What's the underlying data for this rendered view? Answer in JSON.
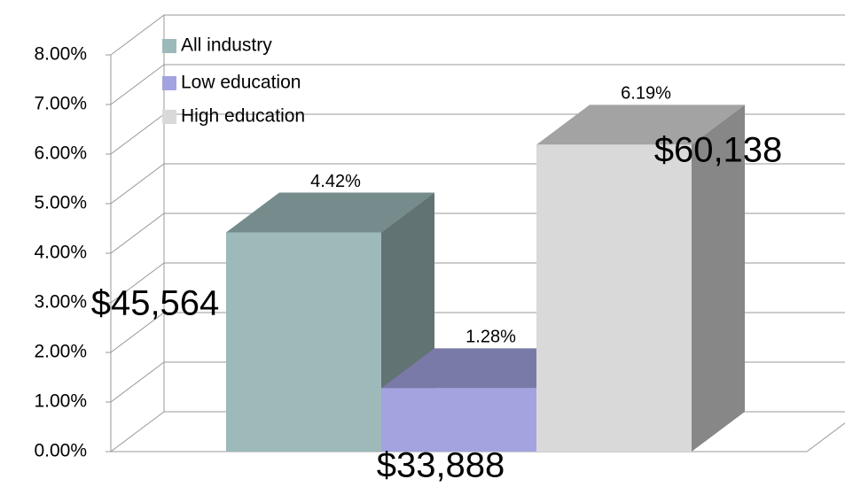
{
  "chart_data": {
    "type": "bar3d",
    "series": [
      {
        "name": "All industry",
        "color": "#9db9ba",
        "values": [
          4.42
        ],
        "value_labels": [
          "4.42%"
        ]
      },
      {
        "name": "Low education",
        "color": "#a3a3e0",
        "values": [
          1.28
        ],
        "value_labels": [
          "1.28%"
        ]
      },
      {
        "name": "High education",
        "color": "#d9d9d9",
        "values": [
          6.19
        ],
        "value_labels": [
          "6.19%"
        ]
      }
    ],
    "annotations": [
      "$45,564",
      "$33,888",
      "$60,138"
    ],
    "ylim": [
      0,
      8
    ],
    "yticks": [
      {
        "value": 0,
        "label": "0.00%"
      },
      {
        "value": 1,
        "label": "1.00%"
      },
      {
        "value": 2,
        "label": "2.00%"
      },
      {
        "value": 3,
        "label": "3.00%"
      },
      {
        "value": 4,
        "label": "4.00%"
      },
      {
        "value": 5,
        "label": "5.00%"
      },
      {
        "value": 6,
        "label": "6.00%"
      },
      {
        "value": 7,
        "label": "7.00%"
      },
      {
        "value": 8,
        "label": "8.00%"
      }
    ],
    "grid": true,
    "legend": "upper left"
  }
}
